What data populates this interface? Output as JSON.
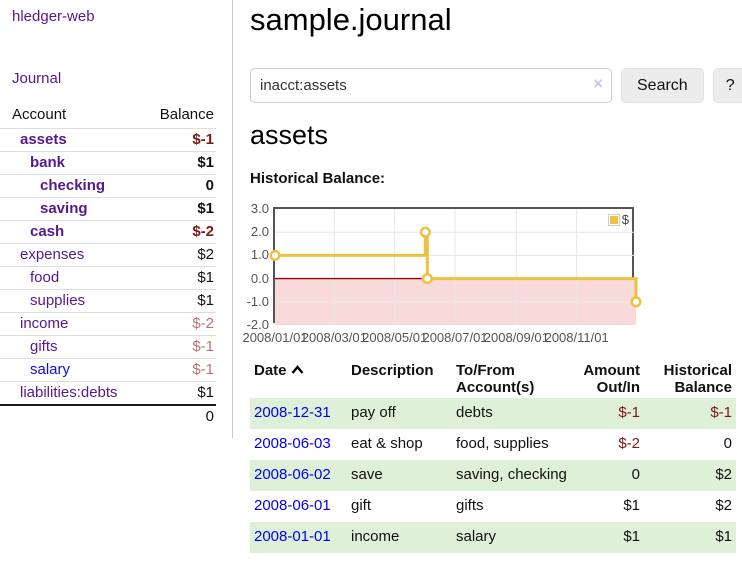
{
  "colors": {
    "accent_purple": "#551a8b",
    "link_blue": "#0000ee",
    "negative_strong": "#7f1616",
    "negative_muted": "#bb7373",
    "row_stripe_green": "#dff0d8",
    "series_gold": "#edc240",
    "zero_line_red": "#990000"
  },
  "sidebar": {
    "app_title": "hledger-web",
    "nav": {
      "journal": "Journal"
    },
    "accounts_table": {
      "headers": {
        "account": "Account",
        "balance": "Balance"
      },
      "rows": [
        {
          "name": "assets",
          "balance": "$-1",
          "depth": 1,
          "bold": true
        },
        {
          "name": "bank",
          "balance": "$1",
          "depth": 2,
          "bold": true
        },
        {
          "name": "checking",
          "balance": "0",
          "depth": 3,
          "bold": true
        },
        {
          "name": "saving",
          "balance": "$1",
          "depth": 3,
          "bold": true
        },
        {
          "name": "cash",
          "balance": "$-2",
          "depth": 2,
          "bold": true
        },
        {
          "name": "expenses",
          "balance": "$2",
          "depth": 1,
          "bold": false
        },
        {
          "name": "food",
          "balance": "$1",
          "depth": 2,
          "bold": false
        },
        {
          "name": "supplies",
          "balance": "$1",
          "depth": 2,
          "bold": false
        },
        {
          "name": "income",
          "balance": "$-2",
          "depth": 1,
          "bold": false
        },
        {
          "name": "gifts",
          "balance": "$-1",
          "depth": 2,
          "bold": false
        },
        {
          "name": "salary",
          "balance": "$-1",
          "depth": 2,
          "bold": false,
          "unvisited": true
        },
        {
          "name": "liabilities:debts",
          "balance": "$1",
          "depth": 1,
          "bold": false
        }
      ],
      "total": "0"
    }
  },
  "main": {
    "title": "sample.journal",
    "search": {
      "value": "inacct:assets",
      "clear_icon": "×",
      "button_label": "Search",
      "help_label": "?"
    },
    "account_heading": "assets",
    "chart_label": "Historical Balance:",
    "register_table": {
      "headers": [
        {
          "line1": "Date",
          "line2": "",
          "align": "left",
          "sort": "ascending"
        },
        {
          "line1": "Description",
          "line2": "",
          "align": "left"
        },
        {
          "line1": "To/From",
          "line2": "Account(s)",
          "align": "left"
        },
        {
          "line1": "Amount",
          "line2": "Out/In",
          "align": "right"
        },
        {
          "line1": "Historical",
          "line2": "Balance",
          "align": "right"
        }
      ],
      "rows": [
        {
          "date": "2008-12-31",
          "description": "pay off",
          "accounts": "debts",
          "amount": "$-1",
          "balance": "$-1"
        },
        {
          "date": "2008-06-03",
          "description": "eat & shop",
          "accounts": "food, supplies",
          "amount": "$-2",
          "balance": "0"
        },
        {
          "date": "2008-06-02",
          "description": "save",
          "accounts": "saving, checking",
          "amount": "0",
          "balance": "$2"
        },
        {
          "date": "2008-06-01",
          "description": "gift",
          "accounts": "gifts",
          "amount": "$1",
          "balance": "$2"
        },
        {
          "date": "2008-01-01",
          "description": "income",
          "accounts": "salary",
          "amount": "$1",
          "balance": "$1"
        }
      ]
    }
  },
  "chart_data": {
    "type": "line",
    "title": "Historical Balance:",
    "step": true,
    "x_type": "date",
    "xlim": [
      "2008-01-01",
      "2008-12-31"
    ],
    "ylim": [
      -2,
      3
    ],
    "yticks": [
      3.0,
      2.0,
      1.0,
      0.0,
      -1.0,
      -2.0
    ],
    "xticks": [
      "2008/01/01",
      "2008/03/01",
      "2008/05/01",
      "2008/07/01",
      "2008/09/01",
      "2008/11/01"
    ],
    "series": [
      {
        "name": "$",
        "color": "#edc240",
        "points": [
          [
            "2008-01-01",
            1
          ],
          [
            "2008-06-01",
            2
          ],
          [
            "2008-06-03",
            0
          ],
          [
            "2008-12-31",
            -1
          ]
        ]
      }
    ],
    "grid": true,
    "grid_color": "#e7e7e7",
    "legend_position": "top-right",
    "negative_region_fill": "#f9dada",
    "zero_line_color": "#990000",
    "border_color": "#545454"
  }
}
